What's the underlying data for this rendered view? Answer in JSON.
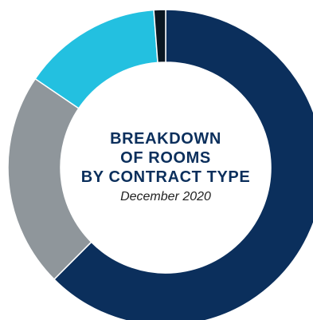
{
  "chart_data": {
    "type": "pie",
    "variant": "donut",
    "title_lines": [
      "BREAKDOWN",
      "OF ROOMS",
      "BY CONTRACT TYPE"
    ],
    "subtitle": "December 2020",
    "slices": [
      {
        "value": 62.5,
        "color": "#0b2f5c"
      },
      {
        "value": 22.0,
        "color": "#8f969b"
      },
      {
        "value": 14.3,
        "color": "#23c0e0"
      },
      {
        "value": 1.2,
        "color": "#0a1722"
      }
    ],
    "start_angle_deg": 0,
    "direction": "clockwise",
    "legend": "none"
  }
}
